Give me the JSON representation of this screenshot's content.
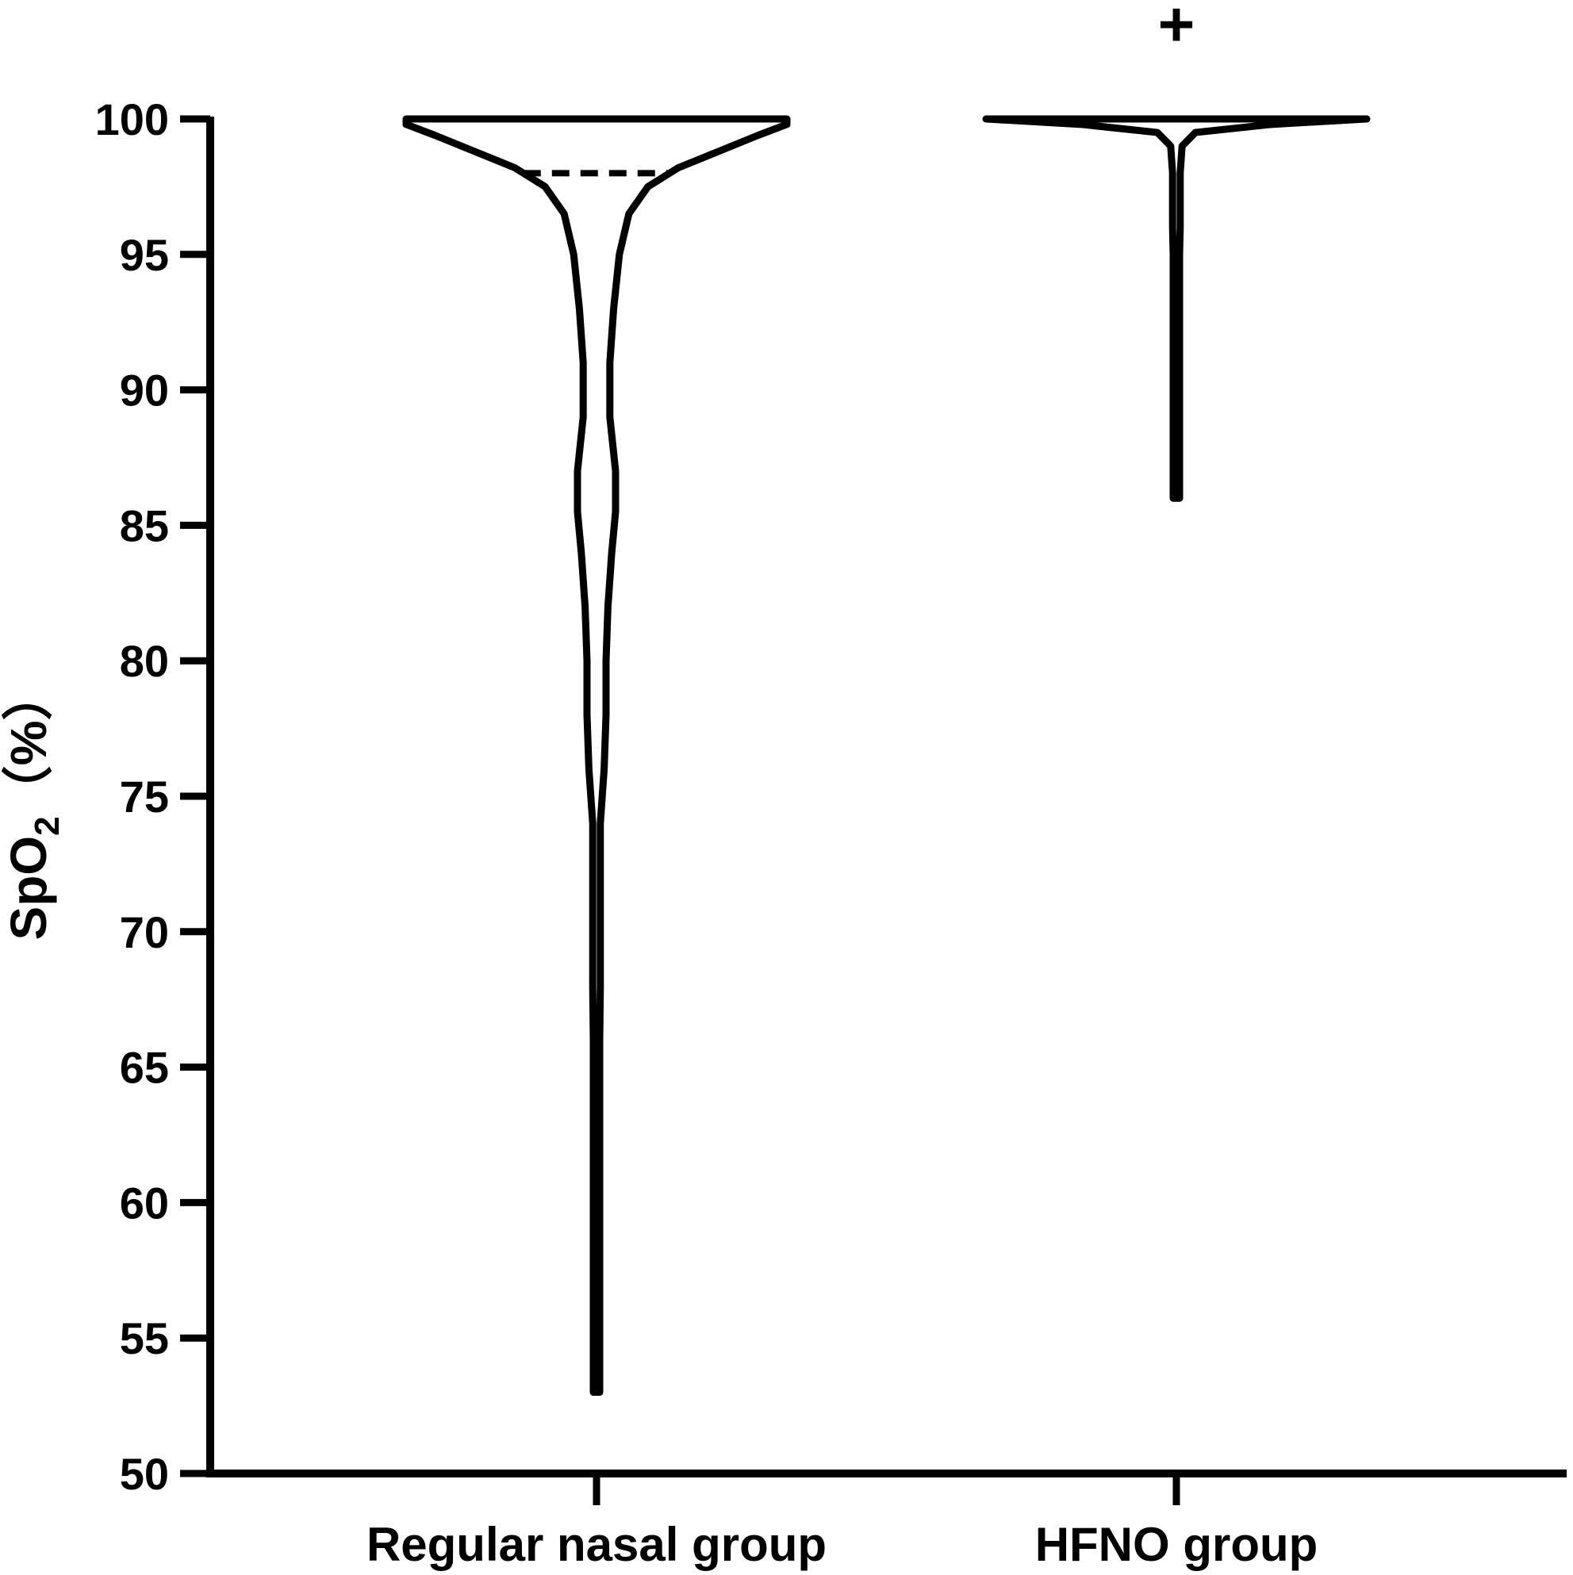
{
  "chart_data": {
    "type": "violin",
    "ylabel": {
      "base": "SpO",
      "subscript": "2",
      "unit": "（%）"
    },
    "ylim": [
      50,
      100
    ],
    "yticks": [
      "50",
      "55",
      "60",
      "65",
      "70",
      "75",
      "80",
      "85",
      "90",
      "95",
      "100"
    ],
    "categories": [
      "Regular nasal group",
      "HFNO group"
    ],
    "series": [
      {
        "category": "Regular nasal group",
        "min": 53,
        "max": 100,
        "median": 98,
        "density": [
          [
            53,
            0.01
          ],
          [
            55,
            0.01
          ],
          [
            60,
            0.01
          ],
          [
            63,
            0.01
          ],
          [
            66,
            0.01
          ],
          [
            68,
            0.02
          ],
          [
            70,
            0.02
          ],
          [
            72,
            0.02
          ],
          [
            74,
            0.02
          ],
          [
            76,
            0.04
          ],
          [
            78,
            0.05
          ],
          [
            80,
            0.05
          ],
          [
            82,
            0.06
          ],
          [
            84,
            0.08
          ],
          [
            85.5,
            0.1
          ],
          [
            87,
            0.1
          ],
          [
            89,
            0.07
          ],
          [
            91,
            0.07
          ],
          [
            93,
            0.09
          ],
          [
            95,
            0.12
          ],
          [
            96.5,
            0.17
          ],
          [
            97.5,
            0.27
          ],
          [
            98.2,
            0.43
          ],
          [
            98.8,
            0.64
          ],
          [
            99.4,
            0.85
          ],
          [
            99.8,
            1.0
          ],
          [
            100,
            1.0
          ]
        ]
      },
      {
        "category": "HFNO group",
        "min": 86,
        "max": 100,
        "median": 100,
        "density": [
          [
            86,
            0.01
          ],
          [
            89,
            0.01
          ],
          [
            90,
            0.01
          ],
          [
            95,
            0.01
          ],
          [
            96,
            0.02
          ],
          [
            97,
            0.02
          ],
          [
            98,
            0.02
          ],
          [
            99,
            0.03
          ],
          [
            99.5,
            0.1
          ],
          [
            99.8,
            0.5
          ],
          [
            100,
            1.0
          ]
        ]
      }
    ],
    "annotations": [
      {
        "category": "HFNO group",
        "text": "+"
      }
    ],
    "grid": false
  }
}
